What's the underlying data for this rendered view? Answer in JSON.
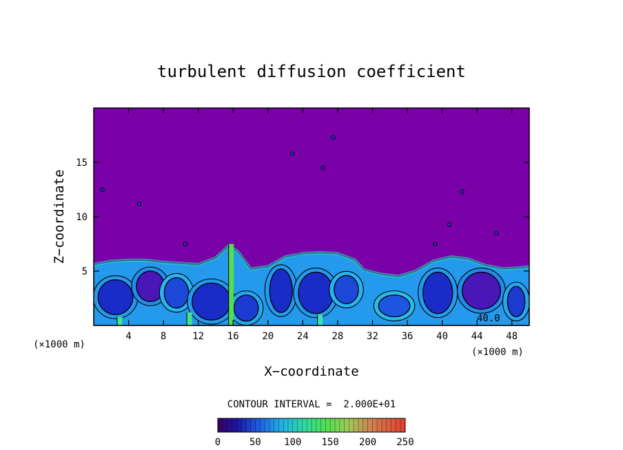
{
  "chart_data": {
    "type": "heatmap",
    "title": "turbulent diffusion coefficient",
    "xlabel": "X−coordinate",
    "ylabel": "Z−coordinate",
    "x_unit_left": "(×1000 m)",
    "x_unit_right": "(×1000 m)",
    "xlim": [
      0,
      50
    ],
    "ylim": [
      0,
      20
    ],
    "x_ticks": [
      4,
      8,
      12,
      16,
      20,
      24,
      28,
      32,
      36,
      40,
      44,
      48
    ],
    "y_ticks": [
      5,
      10,
      15
    ],
    "contour_interval_text": "CONTOUR INTERVAL =  2.000E+01",
    "contour_label": "40.0",
    "colorbar": {
      "min": 0,
      "max": 250,
      "ticks": [
        0,
        50,
        100,
        150,
        200,
        250
      ]
    },
    "background_color": "#7a00a8",
    "turbulent_layer": {
      "top_profile": [
        [
          0,
          5.6
        ],
        [
          2,
          5.9
        ],
        [
          4,
          6.0
        ],
        [
          6,
          6.0
        ],
        [
          8,
          5.8
        ],
        [
          10,
          5.7
        ],
        [
          12,
          5.6
        ],
        [
          14,
          6.2
        ],
        [
          15.5,
          7.3
        ],
        [
          16.5,
          6.8
        ],
        [
          18,
          5.2
        ],
        [
          20,
          5.4
        ],
        [
          22,
          6.3
        ],
        [
          24,
          6.6
        ],
        [
          26,
          6.7
        ],
        [
          28,
          6.6
        ],
        [
          30,
          6.0
        ],
        [
          31,
          5.1
        ],
        [
          33,
          4.7
        ],
        [
          35,
          4.5
        ],
        [
          37,
          5.0
        ],
        [
          39,
          5.9
        ],
        [
          41,
          6.3
        ],
        [
          43,
          6.1
        ],
        [
          45,
          5.5
        ],
        [
          47,
          5.2
        ],
        [
          49,
          5.3
        ],
        [
          50,
          5.4
        ]
      ],
      "cells": [
        {
          "x": 2.5,
          "z": 2.6,
          "rx": 2.0,
          "rz": 1.6,
          "value": 30
        },
        {
          "x": 6.5,
          "z": 3.6,
          "rx": 1.6,
          "rz": 1.4,
          "value": 25
        },
        {
          "x": 9.5,
          "z": 3.0,
          "rx": 1.4,
          "rz": 1.4,
          "value": 40
        },
        {
          "x": 13.5,
          "z": 2.2,
          "rx": 2.2,
          "rz": 1.7,
          "value": 30
        },
        {
          "x": 17.5,
          "z": 1.6,
          "rx": 1.4,
          "rz": 1.2,
          "value": 35
        },
        {
          "x": 21.5,
          "z": 3.2,
          "rx": 1.3,
          "rz": 2.0,
          "value": 30
        },
        {
          "x": 25.5,
          "z": 3.0,
          "rx": 2.0,
          "rz": 1.9,
          "value": 30
        },
        {
          "x": 29.0,
          "z": 3.3,
          "rx": 1.4,
          "rz": 1.3,
          "value": 40
        },
        {
          "x": 34.5,
          "z": 1.8,
          "rx": 1.8,
          "rz": 1.0,
          "value": 45
        },
        {
          "x": 39.5,
          "z": 3.0,
          "rx": 1.7,
          "rz": 1.9,
          "value": 30
        },
        {
          "x": 44.5,
          "z": 3.2,
          "rx": 2.2,
          "rz": 1.7,
          "value": 25
        },
        {
          "x": 48.5,
          "z": 2.2,
          "rx": 1.0,
          "rz": 1.4,
          "value": 35
        }
      ],
      "strands": [
        {
          "x": 15.8,
          "z0": 0.0,
          "z1": 7.5,
          "value": 140
        },
        {
          "x": 11.0,
          "z0": 0.0,
          "z1": 1.2,
          "value": 120
        },
        {
          "x": 26.0,
          "z0": 0.0,
          "z1": 1.0,
          "value": 110
        },
        {
          "x": 3.0,
          "z0": 0.0,
          "z1": 0.8,
          "value": 120
        }
      ],
      "blobs": [
        {
          "x": 5.2,
          "z": 11.2,
          "value": 20
        },
        {
          "x": 22.8,
          "z": 15.8,
          "value": 20
        },
        {
          "x": 26.3,
          "z": 14.5,
          "value": 20
        },
        {
          "x": 27.5,
          "z": 17.3,
          "value": 20
        },
        {
          "x": 42.3,
          "z": 12.3,
          "value": 20
        },
        {
          "x": 40.8,
          "z": 9.3,
          "value": 20
        },
        {
          "x": 1.0,
          "z": 12.5,
          "value": 20
        },
        {
          "x": 46.2,
          "z": 8.5,
          "value": 20
        },
        {
          "x": 39.2,
          "z": 7.5,
          "value": 20
        },
        {
          "x": 10.5,
          "z": 7.5,
          "value": 20
        }
      ]
    }
  }
}
